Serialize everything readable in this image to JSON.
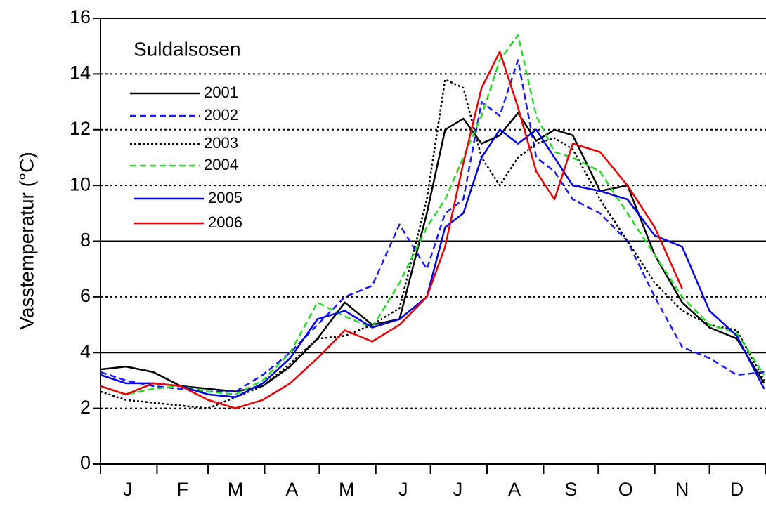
{
  "chart_data": {
    "type": "line",
    "title": "Suldalsosen",
    "y_label": "Vasstemperatur (°C)",
    "x": [
      1,
      15,
      30,
      45,
      60,
      75,
      90,
      105,
      120,
      135,
      150,
      165,
      180,
      190,
      200,
      210,
      220,
      230,
      240,
      250,
      260,
      275,
      290,
      305,
      320,
      335,
      350,
      365
    ],
    "xlim": [
      1,
      366
    ],
    "xticks": [
      {
        "value": 16,
        "label": "J"
      },
      {
        "value": 46,
        "label": "F"
      },
      {
        "value": 75,
        "label": "M"
      },
      {
        "value": 106,
        "label": "A"
      },
      {
        "value": 136,
        "label": "M"
      },
      {
        "value": 167,
        "label": "J"
      },
      {
        "value": 197,
        "label": "J"
      },
      {
        "value": 228,
        "label": "A"
      },
      {
        "value": 259,
        "label": "S"
      },
      {
        "value": 289,
        "label": "O"
      },
      {
        "value": 320,
        "label": "N"
      },
      {
        "value": 350,
        "label": "D"
      }
    ],
    "xtick_marks": [
      1,
      32,
      60,
      91,
      121,
      152,
      182,
      213,
      244,
      274,
      305,
      335,
      366
    ],
    "ylim": [
      0,
      16
    ],
    "yticks": [
      0,
      2,
      4,
      6,
      8,
      10,
      12,
      14,
      16
    ],
    "grid": {
      "solid": [
        4,
        8,
        16
      ],
      "dotted": [
        2,
        6,
        10,
        12,
        14
      ]
    },
    "series": [
      {
        "name": "2001",
        "color": "#000000",
        "dash": "solid",
        "values": [
          3.4,
          3.5,
          3.3,
          2.8,
          2.7,
          2.6,
          2.8,
          3.5,
          4.5,
          5.8,
          5.0,
          5.2,
          9.0,
          12.0,
          12.4,
          11.5,
          11.8,
          12.6,
          11.6,
          12.0,
          11.8,
          9.8,
          10.0,
          7.5,
          5.8,
          4.9,
          4.5,
          2.9
        ]
      },
      {
        "name": "2002",
        "color": "#1a1aff",
        "dash": "dashed",
        "values": [
          3.3,
          3.0,
          2.8,
          2.7,
          2.6,
          2.6,
          3.2,
          4.0,
          5.0,
          6.0,
          6.4,
          8.6,
          7.0,
          9.0,
          9.5,
          13.0,
          12.5,
          14.5,
          11.0,
          10.5,
          9.5,
          9.0,
          8.0,
          6.0,
          4.2,
          3.8,
          3.2,
          3.3
        ]
      },
      {
        "name": "2003",
        "color": "#000000",
        "dash": "dotted",
        "values": [
          2.6,
          2.3,
          2.2,
          2.1,
          2.0,
          2.4,
          2.8,
          3.6,
          4.5,
          4.6,
          5.0,
          5.6,
          9.5,
          13.8,
          13.5,
          11.0,
          10.0,
          11.0,
          11.5,
          11.7,
          11.3,
          9.5,
          8.0,
          6.5,
          5.5,
          5.0,
          4.8,
          3.0
        ]
      },
      {
        "name": "2004",
        "color": "#22dd22",
        "dash": "dashed",
        "values": [
          2.8,
          2.5,
          2.7,
          2.8,
          2.6,
          2.5,
          3.0,
          4.0,
          5.8,
          5.3,
          4.9,
          6.5,
          8.5,
          9.5,
          11.0,
          12.5,
          14.5,
          15.4,
          12.5,
          11.2,
          11.0,
          10.5,
          9.0,
          7.5,
          6.0,
          5.0,
          4.7,
          3.2
        ]
      },
      {
        "name": "2005",
        "color": "#0000ee",
        "dash": "solid",
        "values": [
          3.2,
          2.9,
          2.9,
          2.8,
          2.5,
          2.4,
          2.9,
          3.8,
          5.2,
          5.5,
          4.9,
          5.2,
          6.0,
          8.5,
          9.0,
          11.0,
          12.0,
          11.5,
          12.0,
          11.0,
          10.0,
          9.8,
          9.5,
          8.2,
          7.8,
          5.5,
          4.6,
          2.7
        ]
      },
      {
        "name": "2006",
        "color": "#ee0000",
        "dash": "solid",
        "values": [
          2.8,
          2.5,
          2.9,
          2.8,
          2.3,
          2.0,
          2.3,
          2.9,
          3.8,
          4.8,
          4.4,
          5.0,
          6.0,
          7.8,
          10.8,
          13.5,
          14.8,
          12.8,
          10.5,
          9.5,
          11.5,
          11.2,
          10.0,
          8.5,
          6.3,
          null,
          null,
          null
        ]
      }
    ]
  }
}
